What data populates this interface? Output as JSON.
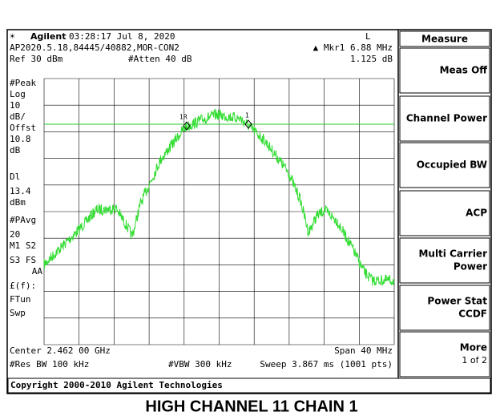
{
  "header": {
    "brand": "Agilent",
    "time": "03:28:17  Jul 8, 2020",
    "mode": "L"
  },
  "info": {
    "file": "AP2020.5.18,84445/40882,MOR-CON2",
    "marker": "▲ Mkr1  6.88 MHz",
    "ref": "Ref 30 dBm",
    "atten": "#Atten 40 dB",
    "marker_value": "1.125 dB"
  },
  "left_labels": [
    "#Peak",
    "Log",
    "10",
    "dB/",
    "Offst",
    "10.8",
    "dB",
    "Dl",
    "13.4",
    "dBm",
    "#PAvg",
    "20",
    "M1  S2",
    "S3  FS",
    "AA",
    "£(f):",
    "FTun",
    "Swp"
  ],
  "markers": [
    "1R",
    "1"
  ],
  "footer": {
    "center": "Center 2.462 00 GHz",
    "span": "Span 40 MHz",
    "rbw": "#Res BW 100 kHz",
    "vbw": "#VBW 300 kHz",
    "sweep": "Sweep 3.867 ms (1001 pts)",
    "copyright": "Copyright 2000-2010 Agilent Technologies"
  },
  "menu": {
    "title": "Measure",
    "items": [
      [
        "Meas Off"
      ],
      [
        "Channel Power"
      ],
      [
        "Occupied BW"
      ],
      [
        "ACP"
      ],
      [
        "Multi Carrier",
        "Power"
      ],
      [
        "Power Stat",
        "CCDF"
      ],
      [
        "More",
        "1 of 2"
      ]
    ]
  },
  "caption": "HIGH CHANNEL 11 CHAIN 1"
}
